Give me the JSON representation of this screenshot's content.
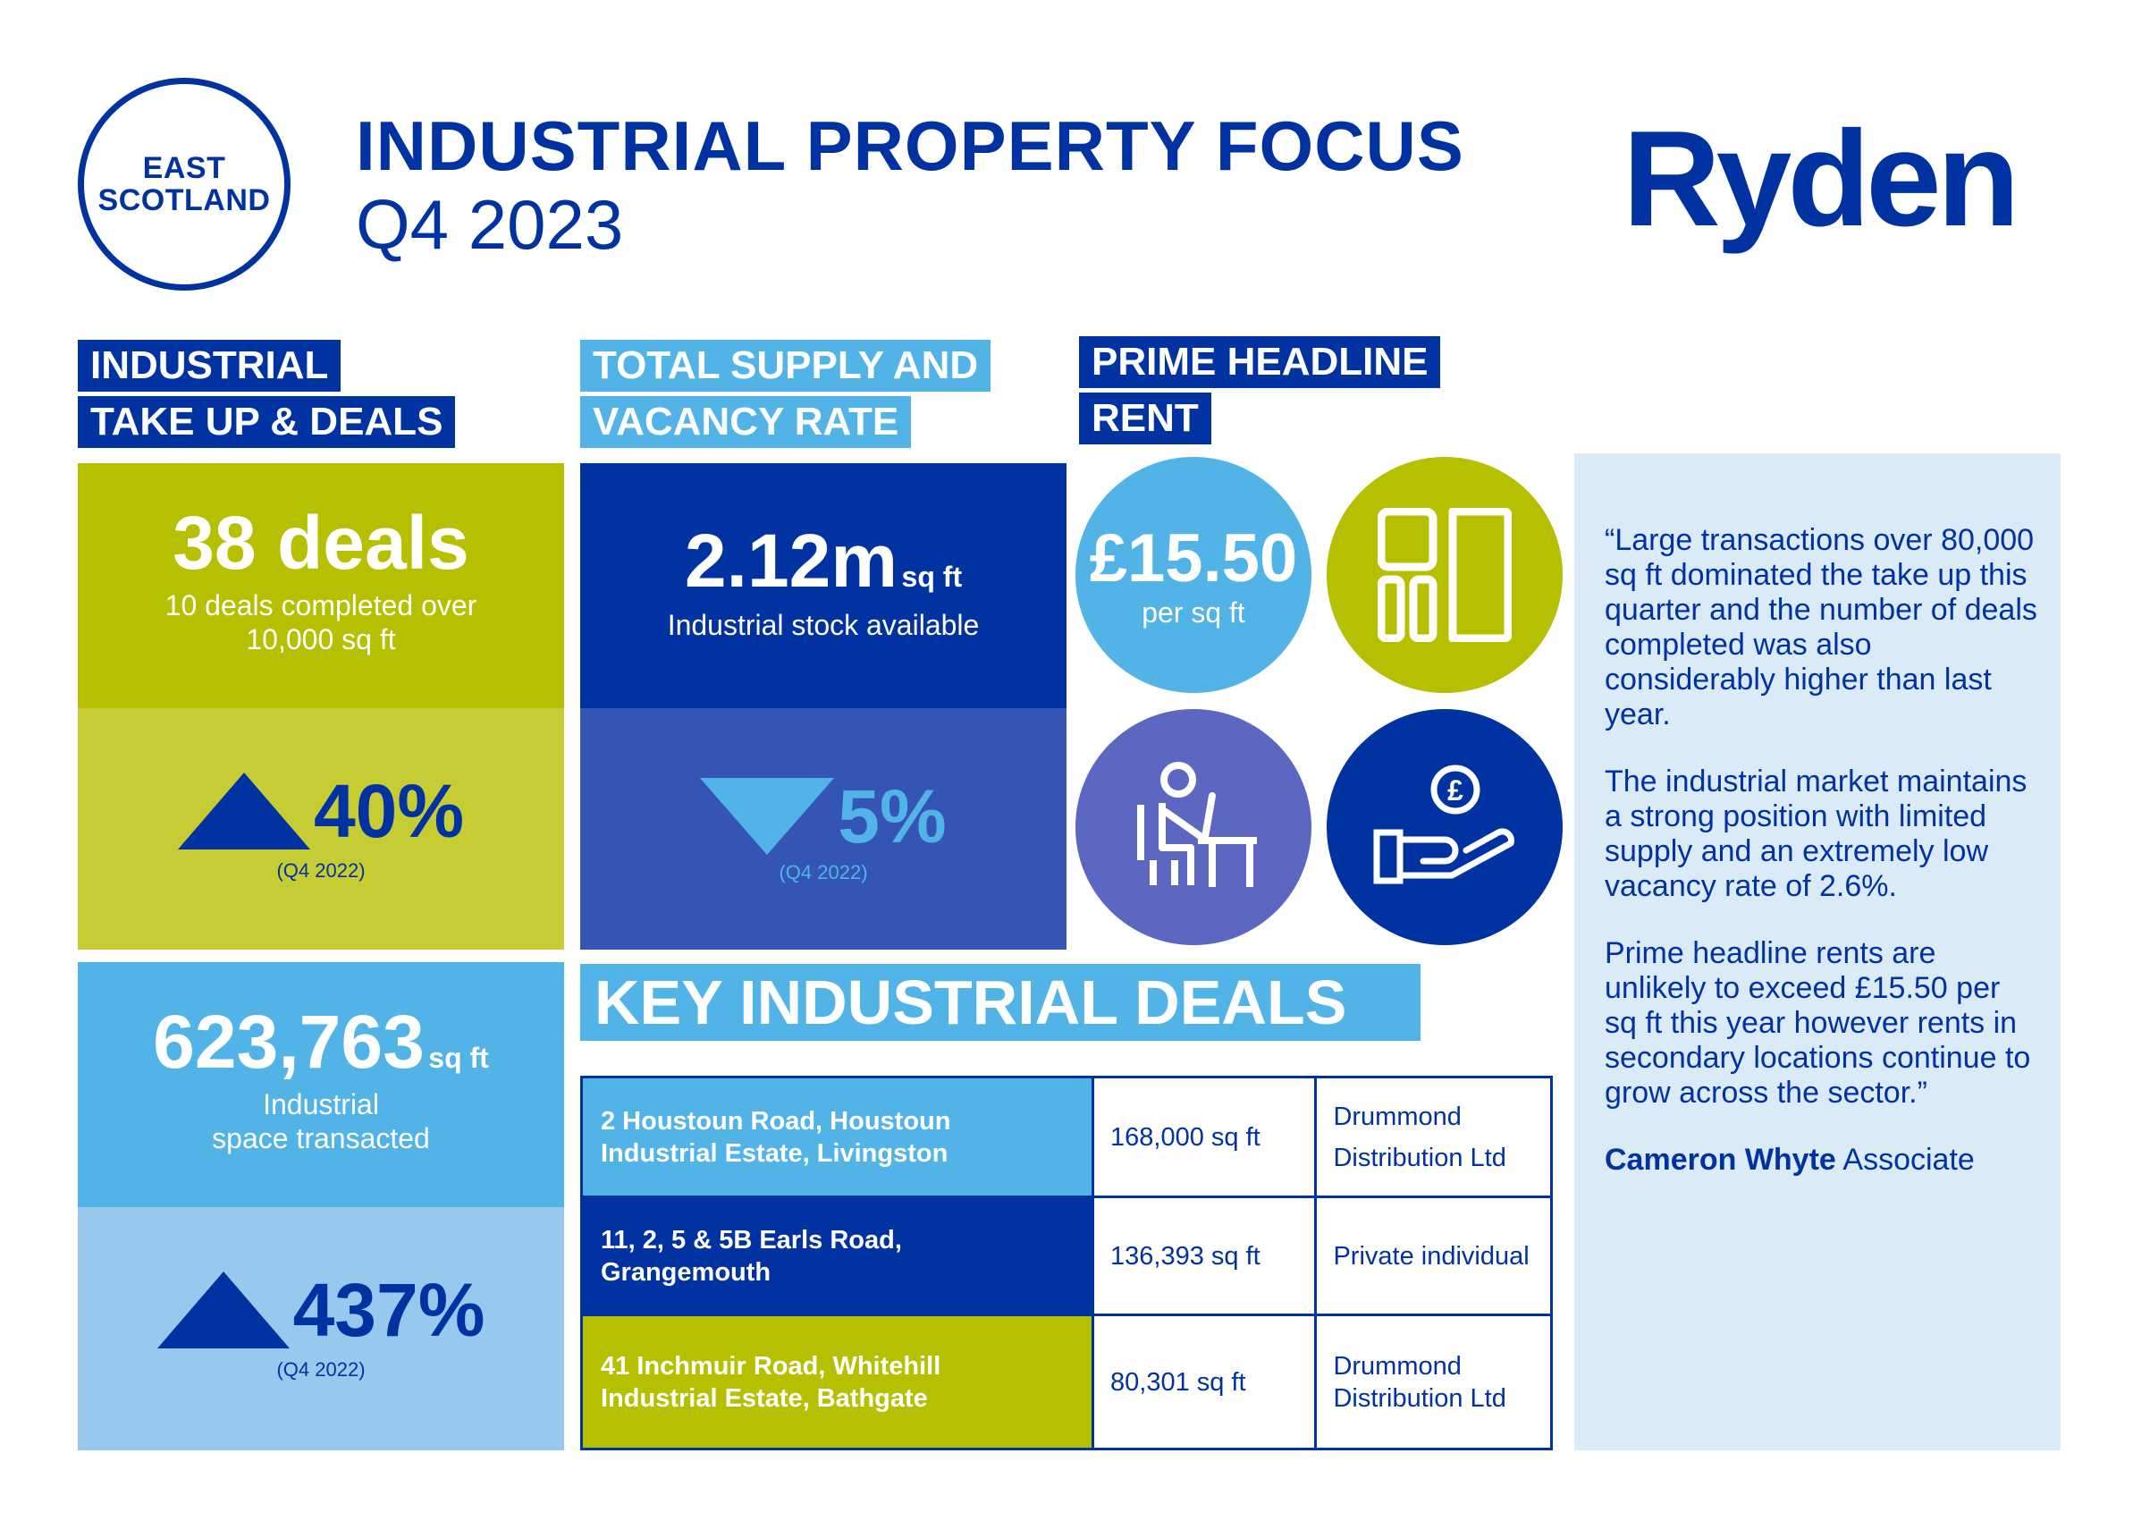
{
  "header": {
    "region_line1": "EAST",
    "region_line2": "SCOTLAND",
    "title": "INDUSTRIAL PROPERTY FOCUS",
    "period": "Q4 2023",
    "logo": "Ryden"
  },
  "colors": {
    "navy": "#0033a1",
    "light_blue": "#52b3e7",
    "lime": "#b5c000",
    "lime_light": "#c6cc33",
    "mid_blue": "#3555b6",
    "purple_blue": "#5b67c0",
    "pale_blue": "#99c8ef",
    "panel": "#dbeaf7"
  },
  "take_up": {
    "label_line1": "INDUSTRIAL",
    "label_line2": "TAKE UP & DEALS",
    "deals_value": "38 deals",
    "deals_desc_line1": "10 deals completed over",
    "deals_desc_line2": "10,000 sq ft",
    "deals_change": "40%",
    "deals_change_dir": "up",
    "deals_change_ref": "(Q4 2022)",
    "space_value": "623,763",
    "space_unit": "sq ft",
    "space_desc_line1": "Industrial",
    "space_desc_line2": "space transacted",
    "space_change": "437%",
    "space_change_dir": "up",
    "space_change_ref": "(Q4 2022)"
  },
  "supply": {
    "label_line1": "TOTAL SUPPLY AND",
    "label_line2": "VACANCY RATE",
    "value": "2.12m",
    "unit": "sq ft",
    "desc": "Industrial stock available",
    "change": "5%",
    "change_dir": "down",
    "change_ref": "(Q4 2022)"
  },
  "rent": {
    "label_line1": "PRIME HEADLINE",
    "label_line2": "RENT",
    "value": "£15.50",
    "unit": "per sq ft",
    "icons": [
      "building-blocks-icon",
      "office-worker-icon",
      "pound-hand-icon"
    ]
  },
  "deals": {
    "title": "KEY INDUSTRIAL DEALS",
    "rows": [
      {
        "address_line1": "2 Houstoun Road, Houstoun",
        "address_line2": "Industrial Estate, Livingston",
        "size": "168,000 sq ft",
        "occupier_line1": "Drummond",
        "occupier_line2": "Distribution Ltd",
        "color": "#52b3e7"
      },
      {
        "address_line1": "11, 2, 5 & 5B Earls Road,",
        "address_line2": "Grangemouth",
        "size": "136,393 sq ft",
        "occupier_line1": "Private individual",
        "occupier_line2": "",
        "color": "#0033a1"
      },
      {
        "address_line1": "41 Inchmuir Road, Whitehill",
        "address_line2": "Industrial Estate, Bathgate",
        "size": "80,301 sq ft",
        "occupier_line1": "Drummond",
        "occupier_line2": "Distribution Ltd",
        "color": "#b5c000"
      }
    ]
  },
  "quote": {
    "para1": "“Large transactions over 80,000 sq ft dominated the take up this quarter and the number of deals completed was also considerably higher than last year.",
    "para2": "The industrial market maintains a strong position with limited supply and an extremely low vacancy rate of 2.6%.",
    "para3": "Prime headline rents are unlikely to exceed £15.50 per sq ft this year however rents in secondary locations continue to grow across the sector.”",
    "author_name": "Cameron Whyte",
    "author_role": "Associate"
  }
}
